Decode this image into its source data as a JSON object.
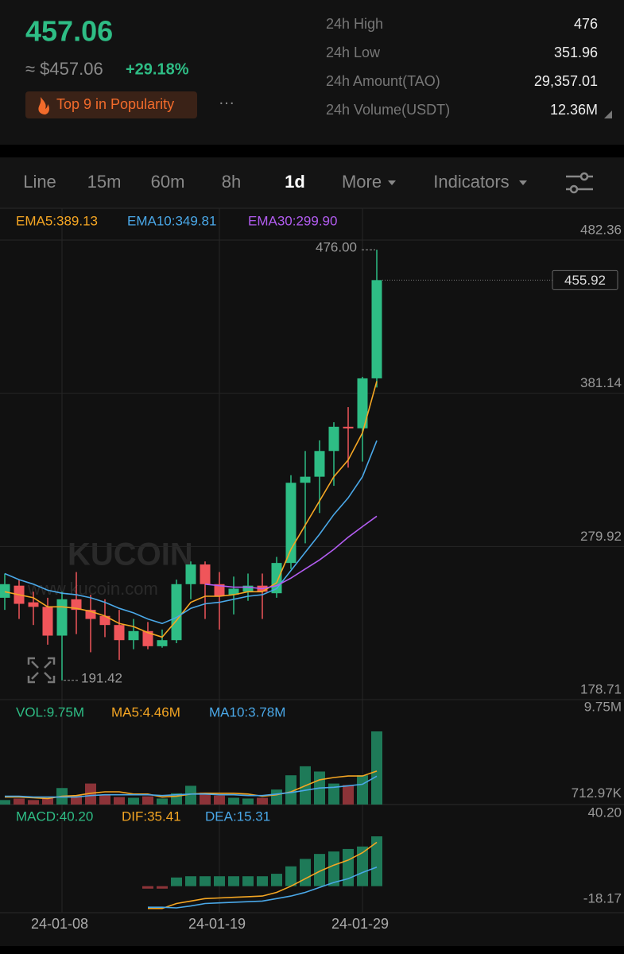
{
  "header": {
    "price": "457.06",
    "fiat": "≈ $457.06",
    "change": "+29.18%",
    "badge": "Top 9 in Popularity",
    "more": "···"
  },
  "stats": [
    {
      "label": "24h High",
      "value": "476"
    },
    {
      "label": "24h Low",
      "value": "351.96"
    },
    {
      "label": "24h Amount(TAO)",
      "value": "29,357.01"
    },
    {
      "label": "24h Volume(USDT)",
      "value": "12.36M"
    }
  ],
  "tabs": [
    "Line",
    "15m",
    "60m",
    "8h",
    "1d",
    "More",
    "Indicators"
  ],
  "active_tab": 4,
  "watermark": [
    "KUCOIN",
    "www.kucoin.com"
  ],
  "chart_data": [
    {
      "type": "candlestick",
      "categories": [
        null,
        null,
        null,
        null,
        "24-01-08",
        null,
        null,
        null,
        null,
        null,
        null,
        null,
        null,
        null,
        null,
        "24-01-19",
        null,
        null,
        null,
        null,
        null,
        null,
        null,
        null,
        null,
        "24-01-29",
        null
      ],
      "open": [
        246,
        254,
        243,
        240,
        221,
        245,
        238,
        234,
        228,
        218,
        224,
        214,
        218,
        255,
        268,
        255,
        248,
        250,
        254,
        249,
        269,
        322,
        326,
        343,
        359,
        358,
        391
      ],
      "high": [
        262,
        258,
        250,
        246,
        250,
        263,
        248,
        245,
        238,
        232,
        230,
        225,
        258,
        270,
        270,
        263,
        260,
        262,
        262,
        273,
        327,
        343,
        350,
        362,
        372,
        392,
        476
      ],
      "low": [
        238,
        232,
        228,
        215,
        191.42,
        222,
        210,
        220,
        205,
        212,
        212,
        213,
        216,
        245,
        232,
        225,
        235,
        244,
        232,
        246,
        265,
        282,
        302,
        320,
        332,
        336,
        385
      ],
      "close": [
        255,
        242,
        240,
        221,
        245,
        238,
        232,
        228,
        218,
        224,
        214,
        218,
        255,
        268,
        255,
        247,
        252,
        254,
        250,
        269,
        322,
        326,
        343,
        359,
        358,
        391,
        455.92
      ],
      "up_color": "#2ebd85",
      "down_color": "#f0555a",
      "series": [
        {
          "name": "EMA5:389.13",
          "color": "#f5a623",
          "values": [
            250,
            248,
            246,
            240,
            240,
            239,
            237,
            234,
            229,
            227,
            223,
            220,
            231,
            243,
            247,
            247,
            248,
            250,
            250,
            256,
            278,
            294,
            310,
            326,
            337,
            355,
            389.13
          ]
        },
        {
          "name": "EMA10:349.81",
          "color": "#4aa8e8",
          "values": [
            262,
            258,
            255,
            251,
            249,
            248,
            246,
            243,
            239,
            236,
            232,
            229,
            233,
            239,
            242,
            243,
            245,
            247,
            248,
            252,
            264,
            276,
            288,
            301,
            312,
            326,
            349.81
          ]
        },
        {
          "name": "EMA30:299.90",
          "color": "#b25cf0",
          "values": [
            null,
            null,
            null,
            null,
            null,
            null,
            null,
            null,
            null,
            null,
            null,
            null,
            null,
            null,
            255,
            254,
            253,
            253,
            252,
            254,
            259,
            265,
            271,
            278,
            286,
            293,
            299.9
          ]
        }
      ],
      "ylim": [
        178.71,
        482.36
      ],
      "yticks": [
        482.36,
        381.14,
        279.92,
        178.71
      ],
      "grid": true,
      "high_label": "476.00",
      "low_label": "191.42",
      "last_label": "455.92"
    },
    {
      "type": "bar",
      "series": [
        {
          "name": "VOL:9.75M",
          "color": "#2ebd85",
          "values": [
            0.6,
            0.8,
            0.6,
            0.9,
            2.2,
            1.2,
            2.8,
            1.3,
            1.0,
            0.9,
            1.1,
            0.8,
            1.5,
            2.5,
            1.6,
            1.2,
            0.9,
            0.8,
            0.9,
            2.0,
            3.9,
            5.1,
            4.4,
            2.8,
            2.6,
            3.9,
            9.75
          ]
        },
        {
          "name": "MA5:4.46M",
          "color": "#f5a623",
          "values": [
            1.0,
            1.0,
            0.9,
            0.8,
            1.1,
            1.2,
            1.5,
            1.7,
            1.7,
            1.4,
            1.4,
            1.0,
            1.1,
            1.4,
            1.5,
            1.5,
            1.5,
            1.4,
            1.1,
            1.3,
            1.7,
            2.5,
            3.3,
            3.6,
            3.8,
            3.8,
            4.46
          ]
        },
        {
          "name": "MA10:3.78M",
          "color": "#4aa8e8",
          "values": [
            1.1,
            1.1,
            1.0,
            1.0,
            1.0,
            1.0,
            1.2,
            1.3,
            1.3,
            1.3,
            1.3,
            1.2,
            1.3,
            1.4,
            1.4,
            1.3,
            1.3,
            1.2,
            1.2,
            1.4,
            1.6,
            1.9,
            2.2,
            2.3,
            2.5,
            2.7,
            3.78
          ]
        }
      ],
      "up_color": "#1e7a58",
      "down_color": "#8c3338",
      "ylim": [
        0,
        9.75
      ],
      "yticks": [
        {
          "value": 9.75,
          "label": "9.75M"
        },
        {
          "value": 0.71297,
          "label": "712.97K"
        }
      ],
      "grid": false
    },
    {
      "type": "bar",
      "series": [
        {
          "name": "MACD:40.20",
          "color": "#2ebd85",
          "values": [
            null,
            null,
            null,
            null,
            null,
            null,
            null,
            null,
            null,
            null,
            -2,
            -2,
            7,
            8,
            8,
            8,
            8,
            8,
            8,
            10,
            16,
            22,
            26,
            28,
            30,
            32,
            40.2
          ]
        },
        {
          "name": "DIF:35.41",
          "color": "#f5a623",
          "values": [
            null,
            null,
            null,
            null,
            null,
            null,
            null,
            null,
            null,
            null,
            -18,
            -18,
            -14,
            -12,
            -10,
            -9.5,
            -9,
            -8.5,
            -8,
            -5,
            0,
            6,
            12,
            17,
            21,
            27,
            35.41
          ]
        },
        {
          "name": "DEA:15.31",
          "color": "#4aa8e8",
          "values": [
            null,
            null,
            null,
            null,
            null,
            null,
            null,
            null,
            null,
            null,
            -17,
            -17,
            -17.5,
            -16,
            -14,
            -13.5,
            -13,
            -12.5,
            -12,
            -10,
            -8,
            -5,
            -1,
            3,
            6,
            11,
            15.31
          ]
        }
      ],
      "up_color": "#1e7a58",
      "down_color": "#8c3338",
      "ylim": [
        -18.17,
        40.2
      ],
      "yticks": [
        {
          "value": 40.2,
          "label": "40.20"
        },
        -18.17
      ],
      "grid": false
    }
  ]
}
